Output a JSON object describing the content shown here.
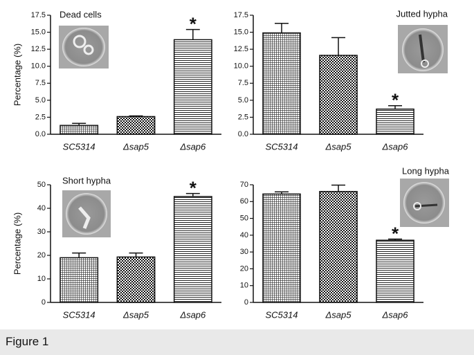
{
  "chart_data": [
    {
      "type": "bar",
      "title": "Dead cells",
      "ylabel": "Percentage (%)",
      "categories": [
        "SC5314",
        "Δsap5",
        "Δsap6"
      ],
      "values": [
        1.3,
        2.6,
        13.9
      ],
      "errors": [
        0.3,
        0.1,
        1.5
      ],
      "ylim": [
        0,
        17.5
      ],
      "yticks": [
        {
          "value": 0,
          "label": "0.0"
        },
        {
          "value": 2.5,
          "label": "2.5"
        },
        {
          "value": 5,
          "label": "5.0"
        },
        {
          "value": 7.5,
          "label": "7.5"
        },
        {
          "value": 10,
          "label": "10.0"
        },
        {
          "value": 12.5,
          "label": "12.5"
        },
        {
          "value": 15,
          "label": "15.0"
        },
        {
          "value": 17.5,
          "label": "17.5"
        }
      ],
      "annotations": [
        {
          "text": "*",
          "x": "Δsap6"
        }
      ]
    },
    {
      "type": "bar",
      "title": "Jutted hypha",
      "categories": [
        "SC5314",
        "Δsap5",
        "Δsap6"
      ],
      "values": [
        14.9,
        11.6,
        3.7
      ],
      "errors": [
        1.4,
        2.6,
        0.5
      ],
      "ylim": [
        0,
        17.5
      ],
      "yticks": [
        {
          "value": 0,
          "label": "0.0"
        },
        {
          "value": 2.5,
          "label": "2.5"
        },
        {
          "value": 5,
          "label": "5.0"
        },
        {
          "value": 7.5,
          "label": "7.5"
        },
        {
          "value": 10,
          "label": "10.0"
        },
        {
          "value": 12.5,
          "label": "12.5"
        },
        {
          "value": 15,
          "label": "15.0"
        },
        {
          "value": 17.5,
          "label": "17.5"
        }
      ],
      "annotations": [
        {
          "text": "*",
          "x": "Δsap6"
        }
      ]
    },
    {
      "type": "bar",
      "title": "Short hypha",
      "ylabel": "Percentage (%)",
      "categories": [
        "SC5314",
        "Δsap5",
        "Δsap6"
      ],
      "values": [
        19,
        19.3,
        45
      ],
      "errors": [
        2,
        1.7,
        1.3
      ],
      "ylim": [
        0,
        50
      ],
      "yticks": [
        0,
        10,
        20,
        30,
        40,
        50
      ],
      "annotations": [
        {
          "text": "*",
          "x": "Δsap6"
        }
      ]
    },
    {
      "type": "bar",
      "title": "Long hypha",
      "categories": [
        "SC5314",
        "Δsap5",
        "Δsap6"
      ],
      "values": [
        64.5,
        66,
        37
      ],
      "errors": [
        1.3,
        3.8,
        0.7
      ],
      "ylim": [
        0,
        70
      ],
      "yticks": [
        0,
        10,
        20,
        30,
        40,
        50,
        60,
        70
      ],
      "annotations": [
        {
          "text": "*",
          "x": "Δsap6"
        }
      ]
    }
  ],
  "caption": "Figure 1"
}
